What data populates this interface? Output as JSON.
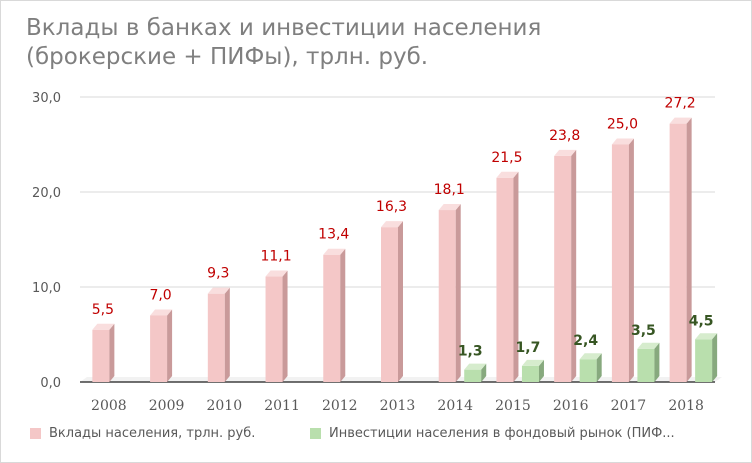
{
  "title_line1": "Вклады в банках и инвестиции населения",
  "title_line2": "(брокерские + ПИФы), трлн. руб.",
  "colors": {
    "deposits_front": "#f4c7c7",
    "deposits_side": "#c99a9a",
    "deposits_top": "#f9dede",
    "investments_front": "#b9dfad",
    "investments_side": "#87a97e",
    "investments_top": "#d6eccd",
    "deposits_label": "#c00000",
    "investments_label": "#375623",
    "axis_text": "#595959",
    "grid": "#d9d9d9"
  },
  "legend": {
    "deposits": "Вклады населения, трлн. руб.",
    "investments": "Инвестиции населения в фондовый рынок (ПИФ..."
  },
  "chart_data": {
    "type": "bar",
    "categories": [
      "2008",
      "2009",
      "2010",
      "2011",
      "2012",
      "2013",
      "2014",
      "2015",
      "2016",
      "2017",
      "2018"
    ],
    "ylim": [
      0,
      30
    ],
    "yticks": [
      "0,0",
      "10,0",
      "20,0",
      "30,0"
    ],
    "grid": true,
    "legend_position": "bottom",
    "series": [
      {
        "name": "Вклады населения, трлн. руб.",
        "values": [
          5.5,
          7.0,
          9.3,
          11.1,
          13.4,
          16.3,
          18.1,
          21.5,
          23.8,
          25.0,
          27.2
        ],
        "labels": [
          "5,5",
          "7,0",
          "9,3",
          "11,1",
          "13,4",
          "16,3",
          "18,1",
          "21,5",
          "23,8",
          "25,0",
          "27,2"
        ]
      },
      {
        "name": "Инвестиции населения в фондовый рынок (ПИФ...",
        "values": [
          null,
          null,
          null,
          null,
          null,
          null,
          1.3,
          1.7,
          2.4,
          3.5,
          4.5
        ],
        "labels": [
          "",
          "",
          "",
          "",
          "",
          "",
          "1,3",
          "1,7",
          "2,4",
          "3,5",
          "4,5"
        ]
      }
    ]
  }
}
